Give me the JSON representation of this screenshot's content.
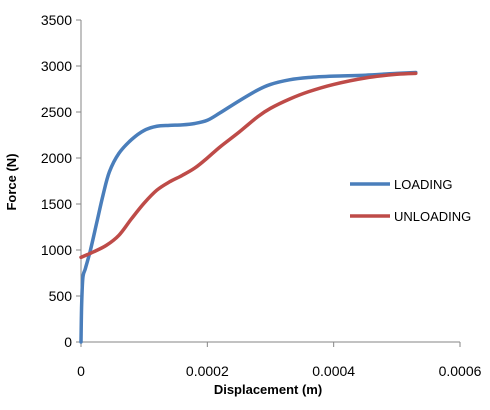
{
  "chart_data": {
    "type": "line",
    "title": "",
    "xlabel": "Displacement (m)",
    "ylabel": "Force (N)",
    "xlim": [
      0,
      0.0006
    ],
    "ylim": [
      0,
      3500
    ],
    "x_ticks": [
      0,
      0.0002,
      0.0004,
      0.0006
    ],
    "x_tick_labels": [
      "0",
      "0.0002",
      "0.0004",
      "0.0006"
    ],
    "y_ticks": [
      0,
      500,
      1000,
      1500,
      2000,
      2500,
      3000,
      3500
    ],
    "y_tick_labels": [
      "0",
      "500",
      "1000",
      "1500",
      "2000",
      "2500",
      "3000",
      "3500"
    ],
    "grid": false,
    "legend_position": "right",
    "series": [
      {
        "name": "LOADING",
        "color": "#4a7ebb",
        "x": [
          0,
          1e-06,
          3e-06,
          7e-06,
          1.5e-05,
          2.5e-05,
          3.5e-05,
          4.5e-05,
          6e-05,
          8e-05,
          0.0001,
          0.00012,
          0.00014,
          0.00016,
          0.00018,
          0.0002,
          0.00022,
          0.00025,
          0.00028,
          0.0003,
          0.00033,
          0.00036,
          0.0004,
          0.00045,
          0.0005,
          0.00053
        ],
        "y": [
          0,
          400,
          700,
          800,
          1000,
          1300,
          1600,
          1850,
          2050,
          2200,
          2300,
          2345,
          2355,
          2360,
          2375,
          2410,
          2490,
          2620,
          2740,
          2800,
          2850,
          2875,
          2890,
          2900,
          2920,
          2930
        ]
      },
      {
        "name": "UNLOADING",
        "color": "#be4b48",
        "x": [
          0.00053,
          0.0005,
          0.00045,
          0.0004,
          0.00036,
          0.00033,
          0.0003,
          0.00028,
          0.00025,
          0.00022,
          0.0002,
          0.00018,
          0.00016,
          0.00014,
          0.00012,
          0.0001,
          8e-05,
          6e-05,
          4e-05,
          2e-05,
          1e-05,
          0
        ],
        "y": [
          2920,
          2910,
          2870,
          2800,
          2720,
          2640,
          2540,
          2450,
          2280,
          2120,
          2000,
          1890,
          1810,
          1740,
          1650,
          1510,
          1340,
          1160,
          1050,
          980,
          950,
          920
        ]
      }
    ]
  }
}
